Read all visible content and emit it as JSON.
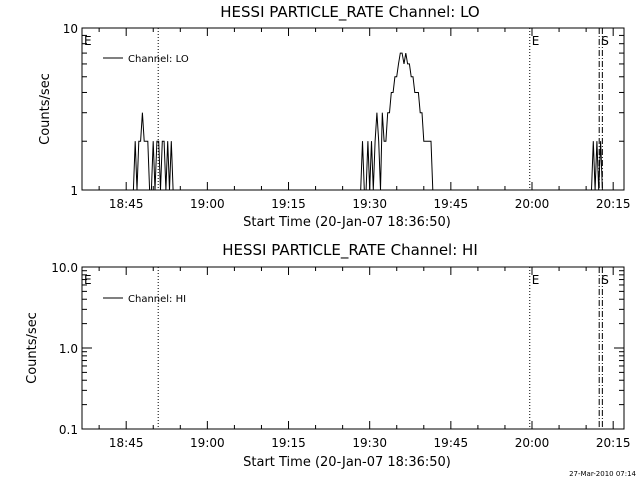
{
  "chart_data": [
    {
      "type": "line",
      "title": "HESSI PARTICLE_RATE Channel: LO",
      "xlabel": "Start Time (20-Jan-07 18:36:50)",
      "ylabel": "Counts/sec",
      "yscale": "log",
      "ylim": [
        1,
        10
      ],
      "xlim": [
        "18:36:50",
        "20:17:00"
      ],
      "xticks": [
        "18:45",
        "19:00",
        "19:15",
        "19:30",
        "19:45",
        "20:00",
        "20:15"
      ],
      "yticks": [
        "1",
        "10"
      ],
      "legend": "top-left",
      "markers": [
        {
          "label": "E",
          "time": "18:36:50",
          "style": "none"
        },
        {
          "label": "",
          "time": "18:50:55",
          "style": "dotted"
        },
        {
          "label": "E",
          "time": "19:59:35",
          "style": "dotted"
        },
        {
          "label": "S",
          "time": "20:12:25",
          "style": "dashed"
        },
        {
          "label": "",
          "time": "20:13:00",
          "style": "dashed"
        }
      ],
      "series": [
        {
          "name": "Channel: LO",
          "x": [
            "18:46:00",
            "18:46:20",
            "18:46:40",
            "18:47:00",
            "18:47:20",
            "18:47:40",
            "18:48:00",
            "18:48:20",
            "18:48:40",
            "18:49:00",
            "18:49:20",
            "18:49:40",
            "18:50:00",
            "18:50:20",
            "18:50:40",
            "18:51:00",
            "18:51:20",
            "18:51:40",
            "18:52:00",
            "18:52:20",
            "18:52:40",
            "18:53:00",
            "18:53:20",
            "18:53:40",
            "19:28:20",
            "19:28:40",
            "19:29:00",
            "19:29:20",
            "19:29:40",
            "19:30:00",
            "19:30:20",
            "19:30:40",
            "19:31:00",
            "19:31:20",
            "19:31:40",
            "19:32:00",
            "19:32:20",
            "19:32:40",
            "19:33:00",
            "19:33:20",
            "19:33:40",
            "19:34:00",
            "19:34:20",
            "19:34:40",
            "19:35:00",
            "19:35:20",
            "19:35:40",
            "19:36:00",
            "19:36:20",
            "19:36:40",
            "19:37:00",
            "19:37:20",
            "19:37:40",
            "19:38:00",
            "19:38:20",
            "19:38:40",
            "19:39:00",
            "19:39:20",
            "19:39:40",
            "19:40:00",
            "19:40:20",
            "19:40:40",
            "19:41:00",
            "19:41:20",
            "19:41:40",
            "19:42:00",
            "20:11:00",
            "20:11:20",
            "20:11:40",
            "20:12:00",
            "20:12:20",
            "20:12:40",
            "20:13:00",
            "20:13:20"
          ],
          "y": [
            1,
            1,
            2,
            1,
            2,
            2,
            3,
            2,
            2,
            2,
            1,
            1,
            2,
            1,
            2,
            2,
            1,
            2,
            2,
            1,
            2,
            1,
            2,
            1,
            1,
            2,
            1,
            1,
            2,
            1,
            2,
            1,
            2,
            3,
            2,
            1,
            3,
            2,
            2,
            3,
            3,
            4,
            4,
            5,
            5,
            6,
            7,
            7,
            6,
            7,
            6,
            6,
            5,
            5,
            4,
            4,
            4,
            3,
            3,
            2,
            2,
            2,
            2,
            2,
            1,
            1,
            1,
            2,
            1,
            2,
            1,
            2,
            1,
            1
          ]
        }
      ]
    },
    {
      "type": "line",
      "title": "HESSI PARTICLE_RATE Channel: HI",
      "xlabel": "Start Time (20-Jan-07 18:36:50)",
      "ylabel": "Counts/sec",
      "yscale": "log",
      "ylim": [
        0.1,
        10
      ],
      "xlim": [
        "18:36:50",
        "20:17:00"
      ],
      "xticks": [
        "18:45",
        "19:00",
        "19:15",
        "19:30",
        "19:45",
        "20:00",
        "20:15"
      ],
      "yticks": [
        "0.1",
        "1.0",
        "10.0"
      ],
      "legend": "top-left",
      "markers": [
        {
          "label": "E",
          "time": "18:36:50",
          "style": "none"
        },
        {
          "label": "",
          "time": "18:50:55",
          "style": "dotted"
        },
        {
          "label": "E",
          "time": "19:59:35",
          "style": "dotted"
        },
        {
          "label": "S",
          "time": "20:12:25",
          "style": "dashed"
        },
        {
          "label": "",
          "time": "20:13:00",
          "style": "dashed"
        }
      ],
      "series": [
        {
          "name": "Channel: HI",
          "x": [],
          "y": []
        }
      ]
    }
  ],
  "footer": {
    "timestamp": "27-Mar-2010 07:14"
  }
}
